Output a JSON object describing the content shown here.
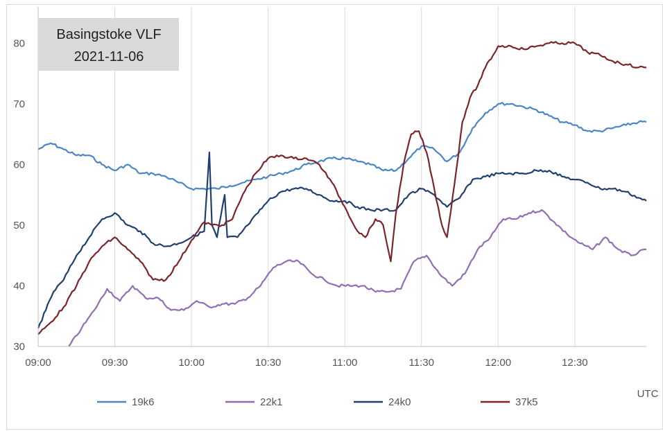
{
  "chart_data": {
    "type": "line",
    "title": "Basingstoke VLF",
    "subtitle": "2021-11-06",
    "xlabel": "UTC",
    "ylabel": "",
    "x_ticks": [
      "09:00",
      "09:30",
      "10:00",
      "10:30",
      "11:00",
      "11:30",
      "12:00",
      "12:30"
    ],
    "xlim": [
      "09:00",
      "12:58"
    ],
    "ylim": [
      30,
      83
    ],
    "y_ticks": [
      "30",
      "40",
      "50",
      "60",
      "70",
      "80"
    ],
    "grid": "vertical",
    "legend_position": "bottom",
    "series": [
      {
        "name": "19k6",
        "color": "#4a86c5",
        "points": [
          [
            "09:00",
            62.5
          ],
          [
            "09:05",
            63.5
          ],
          [
            "09:10",
            62.5
          ],
          [
            "09:15",
            61.5
          ],
          [
            "09:20",
            61.5
          ],
          [
            "09:25",
            60
          ],
          [
            "09:30",
            59
          ],
          [
            "09:35",
            60
          ],
          [
            "09:40",
            58.5
          ],
          [
            "09:45",
            58.5
          ],
          [
            "09:50",
            58
          ],
          [
            "09:55",
            57
          ],
          [
            "10:00",
            56
          ],
          [
            "10:05",
            56
          ],
          [
            "10:10",
            56
          ],
          [
            "10:15",
            56.5
          ],
          [
            "10:20",
            57
          ],
          [
            "10:25",
            57.5
          ],
          [
            "10:30",
            58
          ],
          [
            "10:35",
            58.5
          ],
          [
            "10:40",
            59
          ],
          [
            "10:45",
            60
          ],
          [
            "10:50",
            60.5
          ],
          [
            "10:55",
            61
          ],
          [
            "11:00",
            61
          ],
          [
            "11:05",
            60.5
          ],
          [
            "11:10",
            60
          ],
          [
            "11:15",
            59
          ],
          [
            "11:20",
            59
          ],
          [
            "11:25",
            61
          ],
          [
            "11:30",
            63
          ],
          [
            "11:35",
            62.5
          ],
          [
            "11:40",
            60.5
          ],
          [
            "11:45",
            62
          ],
          [
            "11:50",
            66
          ],
          [
            "11:55",
            68.5
          ],
          [
            "12:00",
            70
          ],
          [
            "12:05",
            70
          ],
          [
            "12:10",
            69.5
          ],
          [
            "12:15",
            69
          ],
          [
            "12:20",
            68
          ],
          [
            "12:25",
            67
          ],
          [
            "12:30",
            66.5
          ],
          [
            "12:35",
            65.5
          ],
          [
            "12:40",
            65.5
          ],
          [
            "12:45",
            66
          ],
          [
            "12:50",
            66.5
          ],
          [
            "12:55",
            67
          ],
          [
            "12:58",
            67
          ]
        ]
      },
      {
        "name": "22k1",
        "color": "#8e6fb3",
        "points": [
          [
            "09:12",
            30
          ],
          [
            "09:17",
            33
          ],
          [
            "09:22",
            36
          ],
          [
            "09:27",
            39.5
          ],
          [
            "09:32",
            37.5
          ],
          [
            "09:37",
            40
          ],
          [
            "09:42",
            38
          ],
          [
            "09:47",
            38
          ],
          [
            "09:52",
            36
          ],
          [
            "09:57",
            36
          ],
          [
            "10:02",
            37.5
          ],
          [
            "10:07",
            36.5
          ],
          [
            "10:12",
            37
          ],
          [
            "10:17",
            37
          ],
          [
            "10:22",
            38
          ],
          [
            "10:27",
            40
          ],
          [
            "10:32",
            43
          ],
          [
            "10:37",
            44
          ],
          [
            "10:42",
            44
          ],
          [
            "10:47",
            42
          ],
          [
            "10:52",
            41
          ],
          [
            "10:57",
            40
          ],
          [
            "11:02",
            40
          ],
          [
            "11:07",
            40
          ],
          [
            "11:12",
            39
          ],
          [
            "11:17",
            39
          ],
          [
            "11:22",
            39.5
          ],
          [
            "11:27",
            44
          ],
          [
            "11:32",
            45
          ],
          [
            "11:37",
            42
          ],
          [
            "11:42",
            40
          ],
          [
            "11:47",
            42
          ],
          [
            "11:52",
            46
          ],
          [
            "11:57",
            48
          ],
          [
            "12:02",
            51
          ],
          [
            "12:07",
            51
          ],
          [
            "12:12",
            52
          ],
          [
            "12:17",
            52.5
          ],
          [
            "12:22",
            50.5
          ],
          [
            "12:27",
            48.5
          ],
          [
            "12:32",
            47
          ],
          [
            "12:37",
            46
          ],
          [
            "12:42",
            48
          ],
          [
            "12:47",
            46
          ],
          [
            "12:52",
            45
          ],
          [
            "12:58",
            46
          ]
        ]
      },
      {
        "name": "24k0",
        "color": "#1f3f6e",
        "points": [
          [
            "09:00",
            33
          ],
          [
            "09:03",
            36
          ],
          [
            "09:06",
            39
          ],
          [
            "09:10",
            41
          ],
          [
            "09:15",
            45
          ],
          [
            "09:20",
            48
          ],
          [
            "09:25",
            51
          ],
          [
            "09:30",
            52
          ],
          [
            "09:35",
            50
          ],
          [
            "09:40",
            49
          ],
          [
            "09:45",
            47
          ],
          [
            "09:50",
            46.5
          ],
          [
            "09:55",
            47
          ],
          [
            "10:00",
            48
          ],
          [
            "10:05",
            49
          ],
          [
            "10:07",
            62
          ],
          [
            "10:08",
            50
          ],
          [
            "10:10",
            48
          ],
          [
            "10:13",
            55
          ],
          [
            "10:14",
            48
          ],
          [
            "10:18",
            48
          ],
          [
            "10:22",
            50
          ],
          [
            "10:26",
            52
          ],
          [
            "10:30",
            54
          ],
          [
            "10:35",
            55.5
          ],
          [
            "10:40",
            56
          ],
          [
            "10:45",
            56
          ],
          [
            "10:50",
            55
          ],
          [
            "10:55",
            54
          ],
          [
            "11:00",
            54
          ],
          [
            "11:05",
            53
          ],
          [
            "11:10",
            52.5
          ],
          [
            "11:15",
            52.5
          ],
          [
            "11:20",
            52.5
          ],
          [
            "11:25",
            55
          ],
          [
            "11:30",
            56
          ],
          [
            "11:35",
            55
          ],
          [
            "11:40",
            53
          ],
          [
            "11:45",
            54.5
          ],
          [
            "11:50",
            57.5
          ],
          [
            "11:55",
            58
          ],
          [
            "12:00",
            58.5
          ],
          [
            "12:05",
            58.5
          ],
          [
            "12:10",
            58.5
          ],
          [
            "12:15",
            59
          ],
          [
            "12:20",
            59
          ],
          [
            "12:25",
            58
          ],
          [
            "12:30",
            57.5
          ],
          [
            "12:35",
            57
          ],
          [
            "12:40",
            56
          ],
          [
            "12:45",
            56
          ],
          [
            "12:50",
            55.5
          ],
          [
            "12:55",
            54.5
          ],
          [
            "12:58",
            54
          ]
        ]
      },
      {
        "name": "37k5",
        "color": "#7b2429",
        "points": [
          [
            "09:00",
            32
          ],
          [
            "09:05",
            34
          ],
          [
            "09:10",
            36.5
          ],
          [
            "09:15",
            40
          ],
          [
            "09:20",
            44
          ],
          [
            "09:25",
            46.5
          ],
          [
            "09:30",
            48
          ],
          [
            "09:35",
            46
          ],
          [
            "09:40",
            44
          ],
          [
            "09:45",
            41
          ],
          [
            "09:50",
            41
          ],
          [
            "09:55",
            44
          ],
          [
            "10:00",
            47.5
          ],
          [
            "10:05",
            50.5
          ],
          [
            "10:08",
            50
          ],
          [
            "10:12",
            50
          ],
          [
            "10:16",
            51
          ],
          [
            "10:20",
            55
          ],
          [
            "10:25",
            58.5
          ],
          [
            "10:30",
            61
          ],
          [
            "10:35",
            61.5
          ],
          [
            "10:40",
            61
          ],
          [
            "10:45",
            61
          ],
          [
            "10:50",
            60
          ],
          [
            "10:55",
            57
          ],
          [
            "11:00",
            53
          ],
          [
            "11:05",
            49
          ],
          [
            "11:08",
            48
          ],
          [
            "11:12",
            51
          ],
          [
            "11:15",
            50
          ],
          [
            "11:18",
            44
          ],
          [
            "11:20",
            52
          ],
          [
            "11:23",
            60
          ],
          [
            "11:26",
            65
          ],
          [
            "11:29",
            65.5
          ],
          [
            "11:32",
            62
          ],
          [
            "11:35",
            56
          ],
          [
            "11:38",
            50
          ],
          [
            "11:40",
            48
          ],
          [
            "11:43",
            57
          ],
          [
            "11:46",
            67
          ],
          [
            "11:49",
            71
          ],
          [
            "11:52",
            73
          ],
          [
            "11:55",
            76
          ],
          [
            "11:58",
            78
          ],
          [
            "12:00",
            79.5
          ],
          [
            "12:05",
            79.5
          ],
          [
            "12:10",
            79
          ],
          [
            "12:15",
            79.5
          ],
          [
            "12:20",
            80
          ],
          [
            "12:25",
            80
          ],
          [
            "12:30",
            80
          ],
          [
            "12:35",
            78.5
          ],
          [
            "12:40",
            78
          ],
          [
            "12:45",
            77
          ],
          [
            "12:50",
            76.5
          ],
          [
            "12:55",
            76
          ],
          [
            "12:58",
            76
          ]
        ]
      }
    ]
  }
}
